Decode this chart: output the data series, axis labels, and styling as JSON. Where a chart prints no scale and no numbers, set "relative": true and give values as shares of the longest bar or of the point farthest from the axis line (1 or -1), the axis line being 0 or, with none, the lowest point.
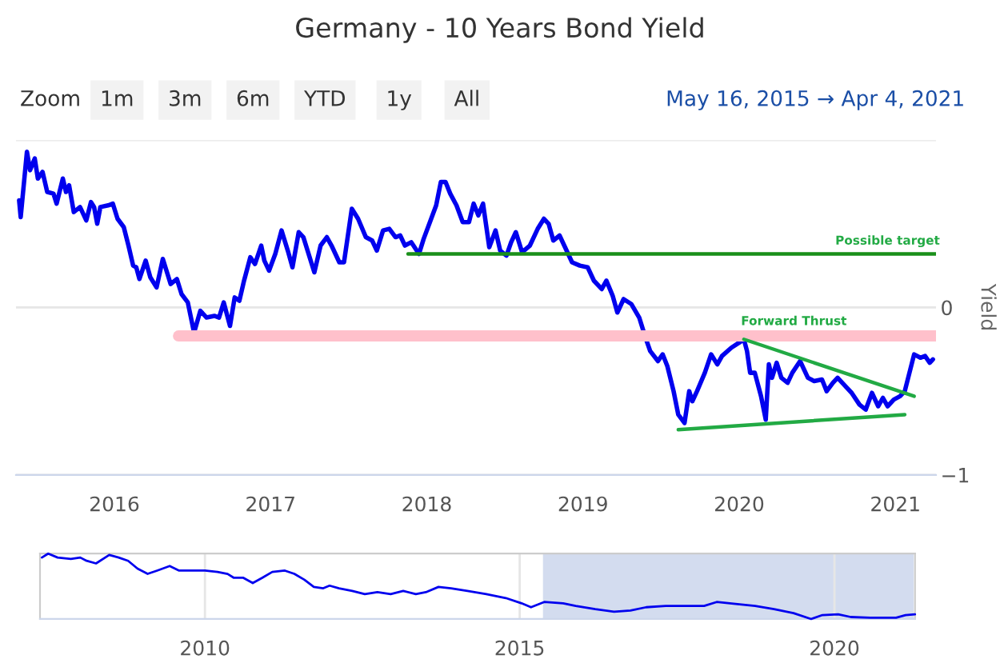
{
  "chart_data": [
    {
      "type": "line",
      "title": "Germany - 10 Years Bond Yield",
      "ylabel": "Yield",
      "xlim": [
        2015.37,
        2021.26
      ],
      "xticks": [
        2016,
        2017,
        2018,
        2019,
        2020,
        2021
      ],
      "ylim": [
        -1,
        1
      ],
      "yticks": [
        {
          "value": 1,
          "label": null
        },
        0,
        {
          "value": -1,
          "label": "−1"
        }
      ],
      "grid": "y",
      "legend": false,
      "series": [
        {
          "color": "#0000ee",
          "x": [
            2015.39,
            2015.4,
            2015.44,
            2015.46,
            2015.49,
            2015.51,
            2015.54,
            2015.57,
            2015.61,
            2015.63,
            2015.67,
            2015.69,
            2015.71,
            2015.74,
            2015.78,
            2015.82,
            2015.85,
            2015.87,
            2015.89,
            2015.91,
            2015.96,
            2015.99,
            2016.02,
            2016.06,
            2016.09,
            2016.12,
            2016.14,
            2016.16,
            2016.2,
            2016.23,
            2016.27,
            2016.31,
            2016.36,
            2016.4,
            2016.43,
            2016.47,
            2016.51,
            2016.55,
            2016.59,
            2016.64,
            2016.67,
            2016.7,
            2016.74,
            2016.77,
            2016.8,
            2016.83,
            2016.87,
            2016.9,
            2016.94,
            2016.96,
            2016.99,
            2017.03,
            2017.07,
            2017.11,
            2017.14,
            2017.18,
            2017.21,
            2017.28,
            2017.32,
            2017.36,
            2017.39,
            2017.44,
            2017.47,
            2017.52,
            2017.56,
            2017.61,
            2017.65,
            2017.68,
            2017.72,
            2017.76,
            2017.8,
            2017.83,
            2017.86,
            2017.9,
            2017.95,
            2017.98,
            2018.02,
            2018.06,
            2018.09,
            2018.12,
            2018.15,
            2018.19,
            2018.23,
            2018.27,
            2018.3,
            2018.33,
            2018.36,
            2018.4,
            2018.44,
            2018.47,
            2018.51,
            2018.54,
            2018.57,
            2018.61,
            2018.66,
            2018.71,
            2018.75,
            2018.78,
            2018.81,
            2018.85,
            2018.88,
            2018.93,
            2018.98,
            2019.03,
            2019.07,
            2019.12,
            2019.15,
            2019.19,
            2019.22,
            2019.26,
            2019.31,
            2019.36,
            2019.4,
            2019.43,
            2019.48,
            2019.51,
            2019.54,
            2019.58,
            2019.61,
            2019.65,
            2019.68,
            2019.7,
            2019.73,
            2019.78,
            2019.82,
            2019.86,
            2019.89,
            2019.95,
            2020.0,
            2020.03,
            2020.05,
            2020.07,
            2020.1,
            2020.14,
            2020.17,
            2020.19,
            2020.21,
            2020.24,
            2020.27,
            2020.31,
            2020.34,
            2020.39,
            2020.44,
            2020.48,
            2020.53,
            2020.56,
            2020.6,
            2020.63,
            2020.68,
            2020.72,
            2020.77,
            2020.81,
            2020.85,
            2020.89,
            2020.92,
            2020.95,
            2020.99,
            2021.03,
            2021.06,
            2021.09,
            2021.12,
            2021.16,
            2021.19,
            2021.22,
            2021.24
          ],
          "values": [
            0.64,
            0.54,
            0.93,
            0.82,
            0.89,
            0.77,
            0.81,
            0.69,
            0.68,
            0.62,
            0.77,
            0.69,
            0.73,
            0.57,
            0.6,
            0.52,
            0.63,
            0.6,
            0.5,
            0.6,
            0.61,
            0.62,
            0.53,
            0.48,
            0.37,
            0.25,
            0.24,
            0.17,
            0.28,
            0.18,
            0.12,
            0.29,
            0.14,
            0.17,
            0.08,
            0.03,
            -0.15,
            -0.02,
            -0.06,
            -0.05,
            -0.06,
            0.03,
            -0.11,
            0.06,
            0.04,
            0.16,
            0.3,
            0.26,
            0.37,
            0.28,
            0.22,
            0.32,
            0.46,
            0.34,
            0.24,
            0.45,
            0.42,
            0.21,
            0.37,
            0.42,
            0.37,
            0.27,
            0.27,
            0.59,
            0.53,
            0.42,
            0.4,
            0.34,
            0.46,
            0.47,
            0.42,
            0.43,
            0.37,
            0.39,
            0.32,
            0.41,
            0.51,
            0.61,
            0.75,
            0.75,
            0.68,
            0.61,
            0.51,
            0.51,
            0.62,
            0.55,
            0.62,
            0.36,
            0.46,
            0.34,
            0.31,
            0.39,
            0.45,
            0.33,
            0.37,
            0.47,
            0.53,
            0.5,
            0.4,
            0.43,
            0.37,
            0.27,
            0.25,
            0.24,
            0.16,
            0.11,
            0.16,
            0.07,
            -0.03,
            0.05,
            0.02,
            -0.06,
            -0.18,
            -0.26,
            -0.32,
            -0.28,
            -0.35,
            -0.5,
            -0.64,
            -0.69,
            -0.5,
            -0.56,
            -0.5,
            -0.39,
            -0.28,
            -0.34,
            -0.29,
            -0.24,
            -0.21,
            -0.19,
            -0.26,
            -0.39,
            -0.39,
            -0.53,
            -0.67,
            -0.34,
            -0.42,
            -0.33,
            -0.42,
            -0.45,
            -0.39,
            -0.32,
            -0.42,
            -0.44,
            -0.43,
            -0.5,
            -0.45,
            -0.42,
            -0.47,
            -0.51,
            -0.58,
            -0.61,
            -0.51,
            -0.59,
            -0.54,
            -0.59,
            -0.55,
            -0.53,
            -0.5,
            -0.39,
            -0.28,
            -0.3,
            -0.29,
            -0.33,
            -0.31
          ]
        },
        {
          "color": "#1a8f1a",
          "x": [
            2017.88,
            2021.26
          ],
          "values": [
            0.32,
            0.32
          ]
        },
        {
          "color": "#ffc0cb",
          "x": [
            2016.41,
            2021.26
          ],
          "values": [
            -0.17,
            -0.17
          ]
        },
        {
          "color": "#22aa44",
          "x": [
            2020.03,
            2021.12
          ],
          "values": [
            -0.19,
            -0.53
          ]
        },
        {
          "color": "#22aa44",
          "x": [
            2019.61,
            2021.06
          ],
          "values": [
            -0.73,
            -0.64
          ]
        }
      ],
      "annotations": [
        "Zoom",
        "1m",
        "3m",
        "6m",
        "YTD",
        "1y",
        "All",
        "May 16, 2015 → Apr 4, 2021",
        {
          "text": "Possible target",
          "x": 2020.95,
          "y": 0.36
        },
        {
          "text": "Forward Thrust",
          "x": 2020.35,
          "y": -0.12
        }
      ]
    },
    {
      "type": "line",
      "relative": true,
      "xlim": [
        2007.38,
        2021.28
      ],
      "xticks": [
        2010,
        2015,
        2020
      ],
      "grid": "x",
      "tick_labels": "x",
      "legend": false,
      "bands": [
        {
          "axis": "x",
          "from": 2015.37,
          "to": 2021.26,
          "color": "#d3dcef"
        }
      ],
      "series": [
        {
          "color": "#0000ee",
          "x": [
            2007.41,
            2007.51,
            2007.66,
            2007.87,
            2008.02,
            2008.12,
            2008.27,
            2008.48,
            2008.63,
            2008.78,
            2008.93,
            2009.09,
            2009.24,
            2009.44,
            2009.59,
            2009.8,
            2010.0,
            2010.2,
            2010.36,
            2010.46,
            2010.61,
            2010.76,
            2010.91,
            2011.07,
            2011.27,
            2011.42,
            2011.58,
            2011.73,
            2011.88,
            2011.98,
            2012.13,
            2012.34,
            2012.54,
            2012.74,
            2012.95,
            2013.15,
            2013.35,
            2013.51,
            2013.71,
            2013.91,
            2014.17,
            2014.47,
            2014.78,
            2015.03,
            2015.18,
            2015.39,
            2015.69,
            2015.89,
            2016.2,
            2016.5,
            2016.76,
            2017.01,
            2017.32,
            2017.62,
            2017.93,
            2018.13,
            2018.43,
            2018.74,
            2019.04,
            2019.35,
            2019.63,
            2019.81,
            2020.06,
            2020.26,
            2020.57,
            2020.98,
            2021.13,
            2021.28
          ],
          "values": [
            0.94,
            1.0,
            0.94,
            0.92,
            0.94,
            0.89,
            0.85,
            0.98,
            0.94,
            0.89,
            0.77,
            0.69,
            0.74,
            0.81,
            0.74,
            0.74,
            0.74,
            0.72,
            0.69,
            0.63,
            0.63,
            0.55,
            0.63,
            0.72,
            0.74,
            0.69,
            0.6,
            0.49,
            0.47,
            0.51,
            0.47,
            0.43,
            0.38,
            0.41,
            0.38,
            0.43,
            0.38,
            0.41,
            0.49,
            0.47,
            0.43,
            0.38,
            0.32,
            0.24,
            0.18,
            0.26,
            0.24,
            0.2,
            0.15,
            0.11,
            0.13,
            0.18,
            0.2,
            0.2,
            0.2,
            0.26,
            0.23,
            0.2,
            0.15,
            0.09,
            0.0,
            0.06,
            0.07,
            0.03,
            0.02,
            0.02,
            0.06,
            0.07
          ]
        }
      ]
    }
  ]
}
